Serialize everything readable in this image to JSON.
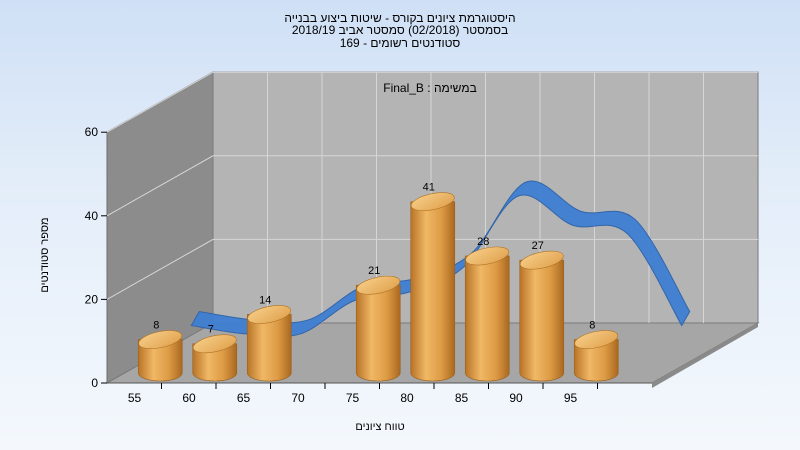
{
  "title_lines": [
    "היסטוגרמת ציונים בקורס - שיטות ביצוע בבנייה",
    "בסמסטר  (02/2018)  סמסטר אביב 2018/19",
    "סטודנטים רשומים - 169"
  ],
  "annotation": "Final_B : במשימה",
  "colors": {
    "bar": "#e2a04a",
    "curve": "#3f7fd3",
    "curve_back": "#6f747a",
    "wall": "#8c8c8c",
    "floor": "#a5a5a5",
    "back": "#b4b4b4"
  },
  "chart_data": {
    "type": "bar",
    "title": "היסטוגרמת ציונים בקורס - שיטות ביצוע בבנייה",
    "xlabel": "טווח ציונים",
    "ylabel": "מספר סטודנטים",
    "categories": [
      "55",
      "60",
      "65",
      "70",
      "75",
      "80",
      "85",
      "90",
      "95"
    ],
    "x_ticks": [
      "55",
      "60",
      "65",
      "70",
      "75",
      "80",
      "85",
      "90",
      "95"
    ],
    "y_ticks": [
      0,
      20,
      40,
      60
    ],
    "ylim": [
      0,
      60
    ],
    "bars": [
      {
        "x": 50,
        "value": 8
      },
      {
        "x": 55,
        "value": 7
      },
      {
        "x": 60,
        "value": 14
      },
      {
        "x": 70,
        "value": 21
      },
      {
        "x": 75,
        "value": 41
      },
      {
        "x": 80,
        "value": 28
      },
      {
        "x": 85,
        "value": 27
      },
      {
        "x": 90,
        "value": 8
      }
    ],
    "curve": {
      "x": [
        50,
        55,
        60,
        65,
        70,
        75,
        80,
        85,
        90,
        95
      ],
      "y": [
        8,
        6,
        6,
        14,
        16,
        22,
        39,
        32,
        30,
        8
      ]
    },
    "grid": true
  }
}
